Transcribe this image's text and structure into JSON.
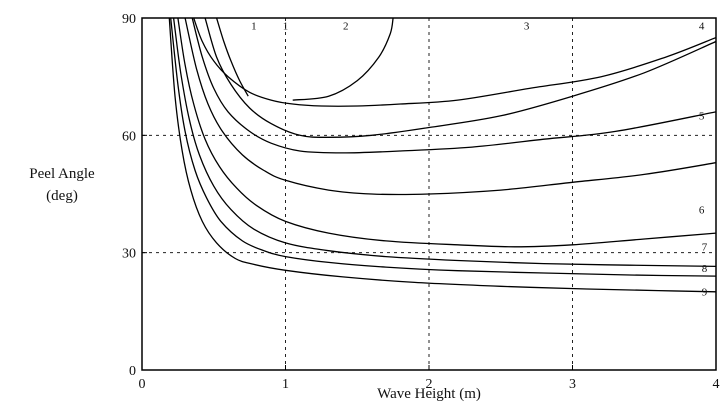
{
  "chart_data": {
    "type": "line",
    "title": "",
    "xlabel": "Wave Height (m)",
    "ylabel_lines": [
      "Peel Angle",
      "(deg)"
    ],
    "xlim": [
      0,
      4
    ],
    "ylim": [
      0,
      90
    ],
    "xticks": [
      0,
      1,
      2,
      3,
      4
    ],
    "yticks": [
      0,
      30,
      60,
      90
    ],
    "grid": "dotted",
    "legend": "none",
    "series": [
      {
        "name": "1",
        "x": [
          0.52,
          0.57,
          0.62,
          0.68,
          0.74
        ],
        "y": [
          90,
          84,
          79,
          74,
          70
        ]
      },
      {
        "name": "2",
        "x": [
          1.05,
          1.3,
          1.5,
          1.65,
          1.73,
          1.75
        ],
        "y": [
          69,
          70,
          74,
          80,
          86,
          90
        ]
      },
      {
        "name": "3",
        "x": [
          0.36,
          0.42,
          0.5,
          0.6,
          0.75,
          0.9,
          1.05,
          1.25,
          1.5,
          1.8,
          2.2,
          2.7,
          3.2,
          3.65,
          4.0
        ],
        "y": [
          90,
          84,
          79,
          75,
          71,
          69,
          68,
          67.5,
          67.5,
          68,
          69,
          72,
          75,
          80,
          85
        ]
      },
      {
        "name": "4",
        "x": [
          0.44,
          0.52,
          0.62,
          0.75,
          0.9,
          1.1,
          1.3,
          1.6,
          2.0,
          2.5,
          3.0,
          3.5,
          4.0
        ],
        "y": [
          90,
          80,
          73,
          67,
          63,
          60,
          59.5,
          60,
          62,
          65,
          70,
          76,
          84
        ]
      },
      {
        "name": "5",
        "x": [
          0.35,
          0.42,
          0.5,
          0.6,
          0.75,
          0.9,
          1.1,
          1.4,
          1.8,
          2.3,
          2.8,
          3.3,
          4.0
        ],
        "y": [
          90,
          80,
          72,
          66,
          61,
          58,
          56,
          55.5,
          56,
          57,
          59,
          61,
          66
        ]
      },
      {
        "name": "6",
        "x": [
          0.3,
          0.38,
          0.46,
          0.56,
          0.7,
          0.85,
          1.0,
          1.3,
          1.6,
          2.0,
          2.5,
          3.0,
          3.5,
          4.0
        ],
        "y": [
          90,
          77,
          68,
          61,
          55,
          51,
          48.5,
          46,
          45,
          45,
          46,
          48,
          50,
          53
        ]
      },
      {
        "name": "7",
        "x": [
          0.25,
          0.3,
          0.36,
          0.44,
          0.54,
          0.66,
          0.8,
          1.0,
          1.3,
          1.7,
          2.2,
          2.6,
          3.0,
          3.5,
          4.0
        ],
        "y": [
          90,
          78,
          68,
          59,
          52,
          46.5,
          42,
          38,
          35,
          33,
          32,
          31.5,
          32,
          33.5,
          35
        ]
      },
      {
        "name": "8",
        "x": [
          0.22,
          0.27,
          0.33,
          0.4,
          0.5,
          0.62,
          0.78,
          1.0,
          1.3,
          1.7,
          2.2,
          2.8,
          3.4,
          4.0
        ],
        "y": [
          90,
          76,
          64,
          55,
          47,
          41,
          36,
          32.5,
          30.5,
          29,
          28,
          27.2,
          26.8,
          26.5
        ]
      },
      {
        "name": "9",
        "x": [
          0.2,
          0.25,
          0.3,
          0.37,
          0.45,
          0.55,
          0.7,
          0.85,
          1.0,
          1.3,
          1.7,
          2.2,
          2.8,
          3.4,
          4.0
        ],
        "y": [
          90,
          73,
          61,
          51,
          44,
          38,
          33,
          30.5,
          29,
          27.5,
          26.3,
          25.4,
          24.8,
          24.3,
          24
        ]
      },
      {
        "name": "",
        "x": [
          0.19,
          0.23,
          0.28,
          0.34,
          0.42,
          0.52,
          0.65,
          0.78,
          1.0,
          1.4,
          1.9,
          2.5,
          3.1,
          3.6,
          4.0
        ],
        "y": [
          90,
          70,
          56,
          46,
          38,
          32.5,
          28.5,
          27,
          25.5,
          23.8,
          22.4,
          21.4,
          20.7,
          20.3,
          20
        ]
      }
    ],
    "curve_labels": [
      {
        "text": "1",
        "x": 0.78,
        "y": 87
      },
      {
        "text": "1",
        "x": 1.0,
        "y": 87
      },
      {
        "text": "2",
        "x": 1.42,
        "y": 87
      },
      {
        "text": "3",
        "x": 2.68,
        "y": 87
      },
      {
        "text": "4",
        "x": 3.9,
        "y": 87
      },
      {
        "text": "5",
        "x": 3.9,
        "y": 64
      },
      {
        "text": "6",
        "x": 3.9,
        "y": 40
      },
      {
        "text": "7",
        "x": 3.92,
        "y": 30.5
      },
      {
        "text": "8",
        "x": 3.92,
        "y": 25
      },
      {
        "text": "9",
        "x": 3.92,
        "y": 19
      }
    ]
  }
}
